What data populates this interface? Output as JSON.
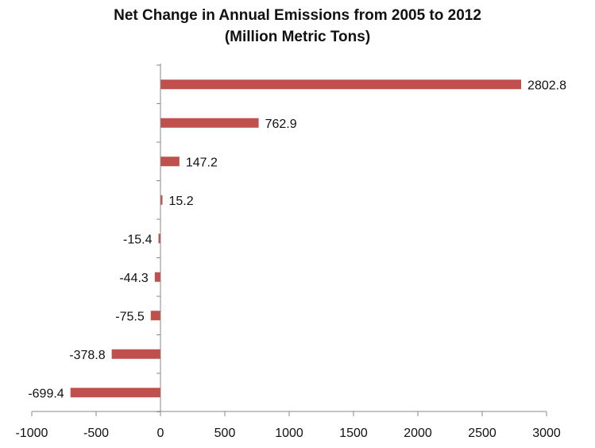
{
  "chart_data": {
    "type": "bar",
    "orientation": "horizontal",
    "title": "Net Change in Annual Emissions from 2005 to 2012",
    "subtitle": "(Million Metric Tons)",
    "xlabel": "",
    "ylabel": "",
    "values": [
      2802.8,
      762.9,
      147.2,
      15.2,
      -15.4,
      -44.3,
      -75.5,
      -378.8,
      -699.4
    ],
    "data_labels": [
      "2802.8",
      "762.9",
      "147.2",
      "15.2",
      "-15.4",
      "-44.3",
      "-75.5",
      "-378.8",
      "-699.4"
    ],
    "xlim": [
      -1000,
      3000
    ],
    "xticks": [
      -1000,
      -500,
      0,
      500,
      1000,
      1500,
      2000,
      2500,
      3000
    ],
    "grid": false,
    "legend": "none",
    "bar_color": "#c0504d"
  }
}
